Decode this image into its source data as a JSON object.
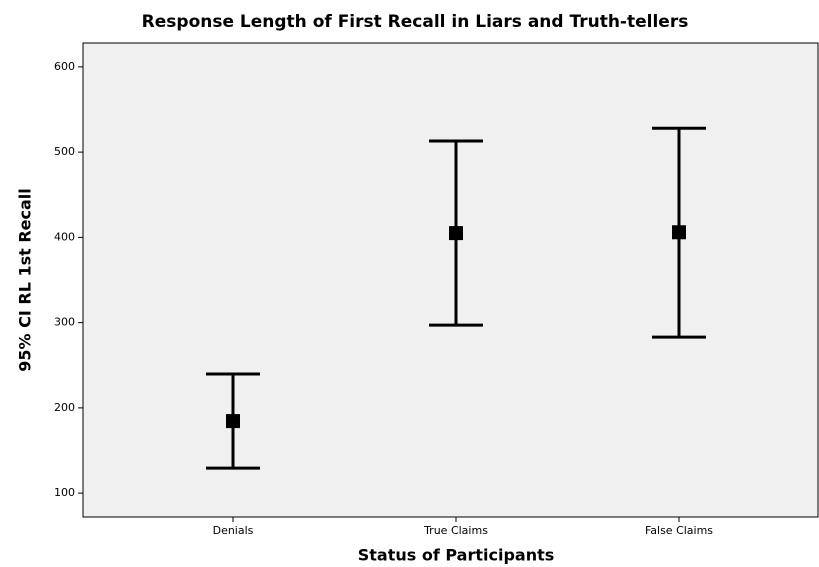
{
  "chart_data": {
    "type": "errorbar",
    "title": "Response Length of First Recall in Liars and Truth-tellers",
    "x_label": "Status of Participants",
    "y_label": "95% CI RL 1st Recall",
    "categories": [
      "Denials",
      "True Claims",
      "False Claims"
    ],
    "values": [
      184.5,
      405,
      406
    ],
    "lower": [
      129.3,
      297,
      283
    ],
    "upper": [
      239.7,
      513,
      528
    ],
    "color": "#000000",
    "background": "#f0f0f0",
    "ylim": [
      72,
      628
    ],
    "yticks": [
      100,
      200,
      300,
      400,
      500,
      600
    ]
  }
}
